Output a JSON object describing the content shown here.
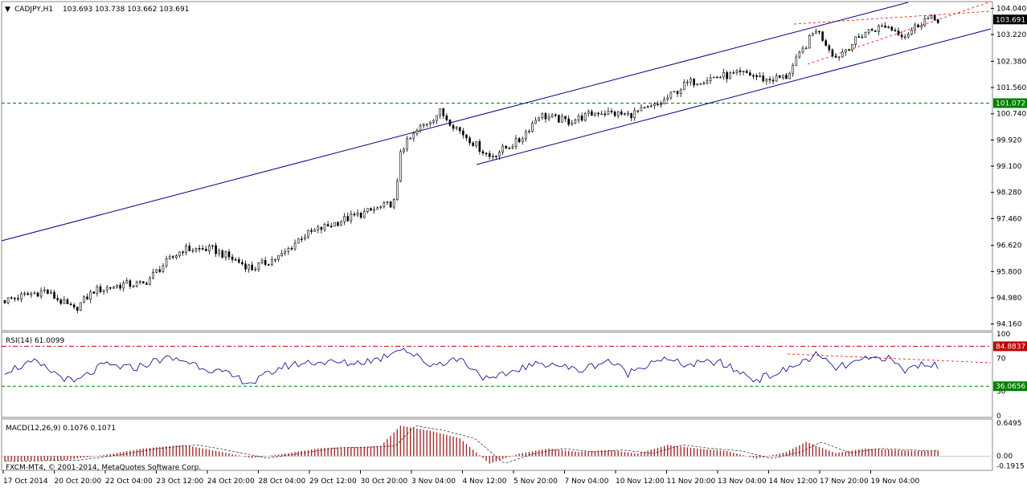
{
  "header": {
    "symbol": "CADJPY,H1",
    "ohlc": "103.693 103.738 103.662 103.691"
  },
  "copyright": "FXCM-MT4, © 2001-2014, MetaQuotes Software Corp.",
  "colors": {
    "trendline": "#00008b",
    "support_resistance": "#008000",
    "rsi_line": "#00008b",
    "rsi_upper": "#c00000",
    "macd_hist": "#a52a2a",
    "wedge": "#ff0000",
    "price_box": "#000000",
    "level_box": "#008000",
    "rsi_upper_box": "#c00000"
  },
  "chart_data": [
    {
      "type": "candlestick",
      "title": "CADJPY,H1",
      "price_levels": [
        "104.040",
        "103.220",
        "102.380",
        "101.560",
        "100.740",
        "99.920",
        "99.100",
        "98.280",
        "97.460",
        "96.620",
        "95.800",
        "94.980",
        "94.160"
      ],
      "ylim": [
        94.0,
        104.2
      ],
      "current_price": "103.691",
      "horizontal_level": "101.072",
      "x_labels": [
        "17 Oct 2014",
        "20 Oct 20:00",
        "22 Oct 04:00",
        "23 Oct 12:00",
        "24 Oct 20:00",
        "28 Oct 04:00",
        "29 Oct 12:00",
        "30 Oct 20:00",
        "3 Nov 04:00",
        "4 Nov 12:00",
        "5 Nov 20:00",
        "7 Nov 04:00",
        "10 Nov 12:00",
        "11 Nov 20:00",
        "13 Nov 04:00",
        "14 Nov 12:00",
        "17 Nov 20:00",
        "19 Nov 04:00"
      ],
      "anchors": [
        {
          "x": 0,
          "v": 94.9
        },
        {
          "x": 0.04,
          "v": 95.2
        },
        {
          "x": 0.07,
          "v": 94.6
        },
        {
          "x": 0.09,
          "v": 95.2
        },
        {
          "x": 0.12,
          "v": 95.4
        },
        {
          "x": 0.14,
          "v": 95.4
        },
        {
          "x": 0.16,
          "v": 96.0
        },
        {
          "x": 0.18,
          "v": 96.5
        },
        {
          "x": 0.21,
          "v": 96.5
        },
        {
          "x": 0.25,
          "v": 95.9
        },
        {
          "x": 0.28,
          "v": 96.3
        },
        {
          "x": 0.3,
          "v": 96.9
        },
        {
          "x": 0.34,
          "v": 97.4
        },
        {
          "x": 0.38,
          "v": 97.8
        },
        {
          "x": 0.395,
          "v": 98.0
        },
        {
          "x": 0.4,
          "v": 99.6
        },
        {
          "x": 0.42,
          "v": 100.3
        },
        {
          "x": 0.44,
          "v": 100.8
        },
        {
          "x": 0.46,
          "v": 100.2
        },
        {
          "x": 0.49,
          "v": 99.4
        },
        {
          "x": 0.52,
          "v": 99.9
        },
        {
          "x": 0.54,
          "v": 100.7
        },
        {
          "x": 0.57,
          "v": 100.5
        },
        {
          "x": 0.6,
          "v": 100.8
        },
        {
          "x": 0.63,
          "v": 100.7
        },
        {
          "x": 0.66,
          "v": 101.0
        },
        {
          "x": 0.69,
          "v": 101.7
        },
        {
          "x": 0.72,
          "v": 101.9
        },
        {
          "x": 0.75,
          "v": 102.0
        },
        {
          "x": 0.77,
          "v": 101.8
        },
        {
          "x": 0.79,
          "v": 101.9
        },
        {
          "x": 0.82,
          "v": 103.4
        },
        {
          "x": 0.84,
          "v": 102.5
        },
        {
          "x": 0.87,
          "v": 103.3
        },
        {
          "x": 0.89,
          "v": 103.5
        },
        {
          "x": 0.91,
          "v": 103.2
        },
        {
          "x": 0.93,
          "v": 103.7
        },
        {
          "x": 0.94,
          "v": 103.69
        }
      ]
    },
    {
      "type": "line",
      "title": "RSI(14) 61.0099",
      "y_labels": [
        "100",
        "70",
        "30",
        "0"
      ],
      "upper_level": "84.8837",
      "lower_level": "36.0656",
      "ylim": [
        0,
        100
      ],
      "anchors": [
        {
          "x": 0,
          "v": 55
        },
        {
          "x": 0.03,
          "v": 65
        },
        {
          "x": 0.07,
          "v": 40
        },
        {
          "x": 0.1,
          "v": 62
        },
        {
          "x": 0.13,
          "v": 58
        },
        {
          "x": 0.16,
          "v": 70
        },
        {
          "x": 0.18,
          "v": 68
        },
        {
          "x": 0.22,
          "v": 52
        },
        {
          "x": 0.25,
          "v": 40
        },
        {
          "x": 0.28,
          "v": 60
        },
        {
          "x": 0.31,
          "v": 66
        },
        {
          "x": 0.35,
          "v": 64
        },
        {
          "x": 0.38,
          "v": 70
        },
        {
          "x": 0.4,
          "v": 84
        },
        {
          "x": 0.43,
          "v": 62
        },
        {
          "x": 0.46,
          "v": 70
        },
        {
          "x": 0.49,
          "v": 42
        },
        {
          "x": 0.52,
          "v": 58
        },
        {
          "x": 0.55,
          "v": 65
        },
        {
          "x": 0.58,
          "v": 55
        },
        {
          "x": 0.61,
          "v": 68
        },
        {
          "x": 0.63,
          "v": 52
        },
        {
          "x": 0.66,
          "v": 70
        },
        {
          "x": 0.69,
          "v": 62
        },
        {
          "x": 0.72,
          "v": 66
        },
        {
          "x": 0.76,
          "v": 44
        },
        {
          "x": 0.79,
          "v": 56
        },
        {
          "x": 0.82,
          "v": 74
        },
        {
          "x": 0.84,
          "v": 58
        },
        {
          "x": 0.87,
          "v": 68
        },
        {
          "x": 0.89,
          "v": 72
        },
        {
          "x": 0.91,
          "v": 55
        },
        {
          "x": 0.93,
          "v": 65
        },
        {
          "x": 0.94,
          "v": 61
        }
      ]
    },
    {
      "type": "bar",
      "title": "MACD(12,26,9) 0.1076 0.1071",
      "y_labels": [
        "0.6495",
        "0.00",
        "-0.1915"
      ],
      "ylim": [
        -0.25,
        0.7
      ],
      "anchors": [
        {
          "x": 0,
          "v": -0.1
        },
        {
          "x": 0.06,
          "v": -0.08
        },
        {
          "x": 0.1,
          "v": 0.02
        },
        {
          "x": 0.14,
          "v": 0.15
        },
        {
          "x": 0.18,
          "v": 0.22
        },
        {
          "x": 0.22,
          "v": 0.08
        },
        {
          "x": 0.25,
          "v": -0.04
        },
        {
          "x": 0.28,
          "v": 0.04
        },
        {
          "x": 0.32,
          "v": 0.16
        },
        {
          "x": 0.36,
          "v": 0.18
        },
        {
          "x": 0.38,
          "v": 0.2
        },
        {
          "x": 0.4,
          "v": 0.6
        },
        {
          "x": 0.43,
          "v": 0.5
        },
        {
          "x": 0.46,
          "v": 0.35
        },
        {
          "x": 0.49,
          "v": -0.15
        },
        {
          "x": 0.52,
          "v": 0.05
        },
        {
          "x": 0.55,
          "v": 0.15
        },
        {
          "x": 0.58,
          "v": 0.08
        },
        {
          "x": 0.61,
          "v": 0.12
        },
        {
          "x": 0.64,
          "v": 0.05
        },
        {
          "x": 0.67,
          "v": 0.22
        },
        {
          "x": 0.7,
          "v": 0.15
        },
        {
          "x": 0.73,
          "v": 0.1
        },
        {
          "x": 0.76,
          "v": -0.05
        },
        {
          "x": 0.79,
          "v": 0.08
        },
        {
          "x": 0.81,
          "v": 0.28
        },
        {
          "x": 0.84,
          "v": 0.06
        },
        {
          "x": 0.87,
          "v": 0.15
        },
        {
          "x": 0.9,
          "v": 0.12
        },
        {
          "x": 0.92,
          "v": 0.1
        },
        {
          "x": 0.94,
          "v": 0.11
        }
      ]
    }
  ]
}
